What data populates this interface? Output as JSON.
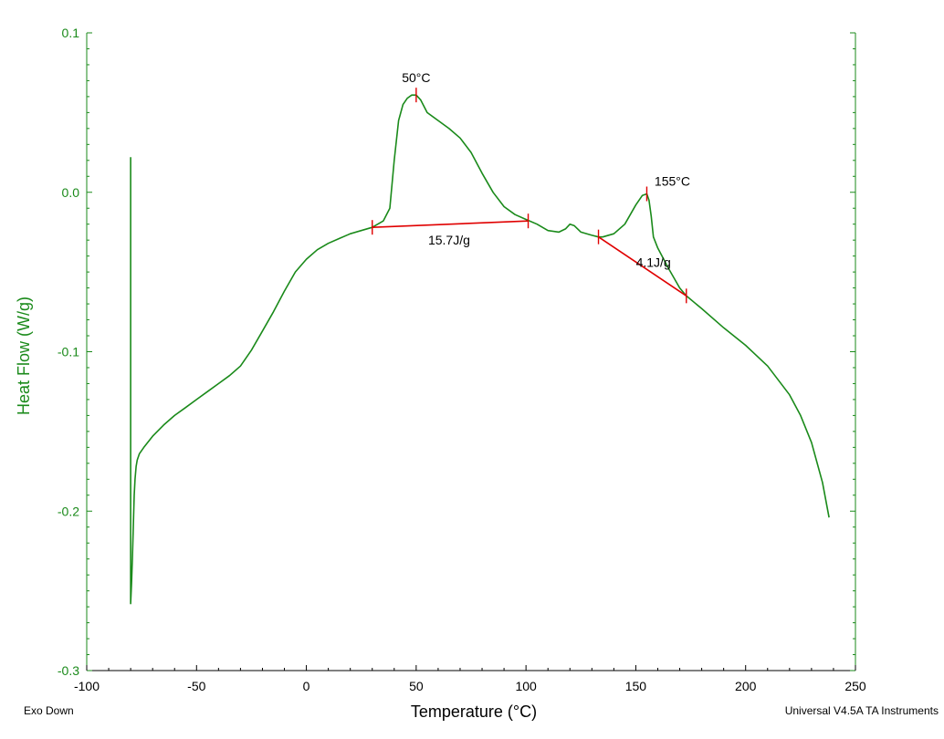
{
  "chart_data": {
    "type": "line",
    "title": "",
    "xlabel": "Temperature (°C)",
    "ylabel": "Heat Flow (W/g)",
    "xlim": [
      -100,
      250
    ],
    "ylim": [
      -0.3,
      0.1
    ],
    "x_ticks": [
      -100,
      -50,
      0,
      50,
      100,
      150,
      200,
      250
    ],
    "x_tick_labels": [
      "-100",
      "-50",
      "0",
      "50",
      "100",
      "150",
      "200",
      "250"
    ],
    "y_ticks": [
      0.1,
      0.0,
      -0.1,
      -0.2,
      -0.3
    ],
    "y_tick_labels": [
      "0.1",
      "0.0",
      "-0.1",
      "-0.2",
      "-0.3"
    ],
    "grid": false,
    "colors": {
      "curve": "#1a8a1a",
      "baseline": "#e00000",
      "axis_y": "#1a8a1a",
      "axis_x": "#000000"
    },
    "series": [
      {
        "x": [
          -80,
          -80,
          -80,
          -80,
          -79.6,
          -79.2,
          -78.8,
          -78.4,
          -78,
          -77.5,
          -77,
          -76,
          -74,
          -70,
          -65,
          -60,
          -55,
          -50,
          -45,
          -40,
          -35,
          -30,
          -25,
          -20,
          -15,
          -10,
          -5,
          0,
          5,
          10,
          15,
          20,
          25,
          30,
          35,
          38,
          40,
          42,
          44,
          46,
          48,
          50,
          52,
          55,
          60,
          65,
          70,
          75,
          80,
          85,
          90,
          95,
          100,
          105,
          110,
          115,
          118,
          120,
          122,
          125,
          130,
          133,
          135,
          140,
          145,
          150,
          153,
          155,
          156,
          157,
          158,
          160,
          165,
          170,
          173,
          180,
          190,
          200,
          210,
          220,
          225,
          230,
          235,
          238
        ],
        "y": [
          0.022,
          0.0,
          -0.24,
          -0.258,
          -0.245,
          -0.23,
          -0.21,
          -0.19,
          -0.18,
          -0.172,
          -0.168,
          -0.164,
          -0.16,
          -0.153,
          -0.146,
          -0.14,
          -0.135,
          -0.13,
          -0.125,
          -0.12,
          -0.115,
          -0.109,
          -0.099,
          -0.087,
          -0.075,
          -0.062,
          -0.05,
          -0.042,
          -0.036,
          -0.032,
          -0.029,
          -0.026,
          -0.024,
          -0.022,
          -0.018,
          -0.01,
          0.02,
          0.045,
          0.055,
          0.059,
          0.061,
          0.061,
          0.058,
          0.05,
          0.045,
          0.04,
          0.034,
          0.025,
          0.012,
          0.0,
          -0.009,
          -0.014,
          -0.017,
          -0.02,
          -0.024,
          -0.025,
          -0.023,
          -0.02,
          -0.021,
          -0.025,
          -0.027,
          -0.028,
          -0.028,
          -0.026,
          -0.02,
          -0.008,
          -0.002,
          -0.001,
          -0.005,
          -0.015,
          -0.028,
          -0.035,
          -0.048,
          -0.06,
          -0.065,
          -0.073,
          -0.085,
          -0.096,
          -0.109,
          -0.127,
          -0.14,
          -0.157,
          -0.182,
          -0.204
        ]
      }
    ],
    "baselines": [
      {
        "x1": 30,
        "y1": -0.022,
        "x2": 101,
        "y2": -0.018,
        "label": "15.7J/g",
        "label_x": 65,
        "label_y": -0.03
      },
      {
        "x1": 133,
        "y1": -0.028,
        "x2": 173,
        "y2": -0.065,
        "label": "4.1J/g",
        "label_x": 158,
        "label_y": -0.044
      }
    ],
    "peaks": [
      {
        "x": 50,
        "y": 0.061,
        "label": "50°C"
      },
      {
        "x": 155,
        "y": -0.001,
        "label": "155°C"
      }
    ],
    "footer_left": "Exo Down",
    "footer_right": "Universal V4.5A TA Instruments"
  }
}
